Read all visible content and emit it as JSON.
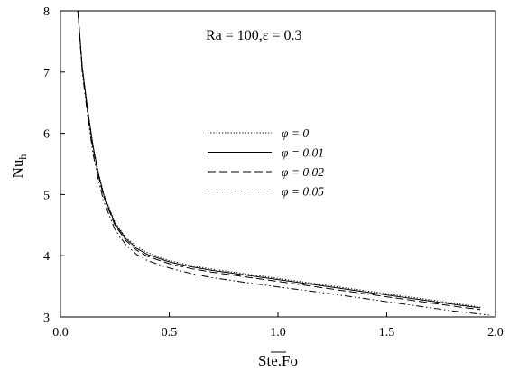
{
  "chart_data": {
    "type": "line",
    "annotation": "Ra = 100,ε = 0.3",
    "xlabel": "Ste.Fo",
    "ylabel": "Nu",
    "ylabel_subscript": "h",
    "xlim": [
      0.0,
      2.0
    ],
    "ylim": [
      3,
      8
    ],
    "xticks": [
      "0.0",
      "0.5",
      "1.0",
      "1.5",
      "2.0"
    ],
    "yticks": [
      "3",
      "4",
      "5",
      "6",
      "7",
      "8"
    ],
    "grid": false,
    "legend_position": "center",
    "series": [
      {
        "name": "φ = 0",
        "style": "dotted",
        "x": [
          0.08,
          0.1,
          0.125,
          0.15,
          0.175,
          0.2,
          0.25,
          0.3,
          0.35,
          0.4,
          0.5,
          0.6,
          0.7,
          0.8,
          1.0,
          1.2,
          1.4,
          1.6,
          1.8,
          1.93
        ],
        "y": [
          8.0,
          7.1,
          6.4,
          5.8,
          5.35,
          5.0,
          4.55,
          4.3,
          4.15,
          4.05,
          3.92,
          3.84,
          3.78,
          3.73,
          3.63,
          3.53,
          3.43,
          3.33,
          3.23,
          3.16
        ]
      },
      {
        "name": "φ = 0.01",
        "style": "solid",
        "x": [
          0.08,
          0.1,
          0.125,
          0.15,
          0.175,
          0.2,
          0.25,
          0.3,
          0.35,
          0.4,
          0.5,
          0.6,
          0.7,
          0.8,
          1.0,
          1.2,
          1.4,
          1.6,
          1.8,
          1.93
        ],
        "y": [
          8.0,
          7.08,
          6.38,
          5.78,
          5.33,
          4.98,
          4.53,
          4.28,
          4.12,
          4.02,
          3.9,
          3.82,
          3.76,
          3.71,
          3.61,
          3.51,
          3.41,
          3.31,
          3.21,
          3.15
        ]
      },
      {
        "name": "φ = 0.02",
        "style": "dashed",
        "x": [
          0.08,
          0.1,
          0.125,
          0.15,
          0.175,
          0.2,
          0.25,
          0.3,
          0.35,
          0.4,
          0.5,
          0.6,
          0.7,
          0.8,
          1.0,
          1.2,
          1.4,
          1.6,
          1.8,
          1.93
        ],
        "y": [
          8.0,
          7.05,
          6.35,
          5.75,
          5.3,
          4.95,
          4.5,
          4.25,
          4.09,
          3.99,
          3.87,
          3.79,
          3.73,
          3.68,
          3.58,
          3.48,
          3.38,
          3.28,
          3.18,
          3.12
        ]
      },
      {
        "name": "φ = 0.05",
        "style": "dash-dot-dot",
        "x": [
          0.08,
          0.1,
          0.125,
          0.15,
          0.175,
          0.2,
          0.25,
          0.3,
          0.35,
          0.4,
          0.5,
          0.6,
          0.7,
          0.8,
          1.0,
          1.2,
          1.4,
          1.6,
          1.8,
          1.97
        ],
        "y": [
          8.0,
          7.0,
          6.28,
          5.66,
          5.22,
          4.88,
          4.43,
          4.18,
          4.02,
          3.92,
          3.8,
          3.71,
          3.64,
          3.59,
          3.49,
          3.4,
          3.3,
          3.2,
          3.1,
          3.03
        ]
      }
    ]
  }
}
